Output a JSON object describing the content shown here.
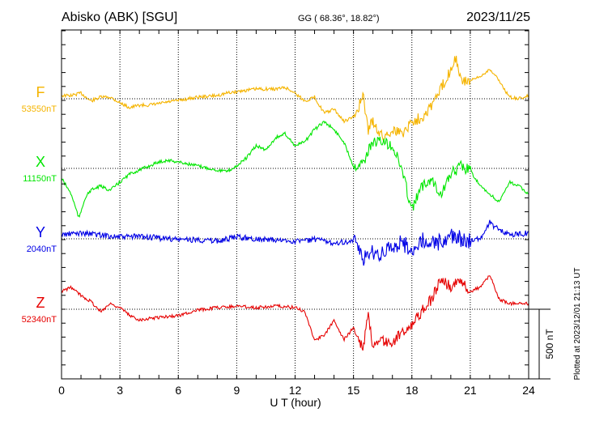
{
  "chart_data": {
    "type": "line",
    "title": "Abisko (ABK)  [SGU]",
    "coords": "GG ( 68.36°,  18.82°)",
    "date": "2023/11/25",
    "xlabel": "U T (hour)",
    "xlim": [
      0,
      24
    ],
    "x_ticks": [
      "0",
      "3",
      "6",
      "9",
      "12",
      "15",
      "18",
      "21",
      "24"
    ],
    "scale_label": "500 nT",
    "scale_nT": 500,
    "footer": "Plotted at 2023/12/01 21:13 UT",
    "grid": "dotted, every 3 hours; baseline per series",
    "series": [
      {
        "name": "F",
        "baseline_label": "53550nT",
        "color": "#f5b400",
        "t": [
          0,
          0.5,
          1,
          1.5,
          2,
          2.5,
          3,
          3.5,
          4,
          4.5,
          5,
          5.5,
          6,
          7,
          8,
          8.5,
          9,
          10,
          11,
          11.5,
          12,
          12.5,
          13,
          13.5,
          14,
          14.5,
          15,
          15.5,
          15.75,
          16,
          16.5,
          17,
          17.5,
          18,
          18.5,
          19,
          19.5,
          20,
          20.25,
          20.5,
          21,
          21.5,
          22,
          22.5,
          23,
          23.5,
          24
        ],
        "nT": [
          23,
          23,
          41,
          -17,
          12,
          12,
          -29,
          -64,
          -46,
          -46,
          -35,
          -23,
          -12,
          12,
          23,
          41,
          52,
          70,
          70,
          81,
          41,
          -17,
          12,
          -104,
          -75,
          -162,
          -133,
          12,
          -220,
          -162,
          -279,
          -220,
          -249,
          -162,
          -133,
          -46,
          70,
          215,
          302,
          128,
          128,
          157,
          215,
          128,
          12,
          0,
          23
        ]
      },
      {
        "name": "X",
        "baseline_label": "11150nT",
        "color": "#00e600",
        "t": [
          0,
          0.5,
          0.9,
          1.2,
          1.5,
          2,
          2.5,
          3,
          3.5,
          4,
          4.5,
          5,
          5.5,
          6,
          7,
          8,
          8.5,
          9,
          9.5,
          10,
          10.5,
          11,
          11.5,
          12,
          12.5,
          13,
          13.5,
          14,
          14.5,
          15,
          15.5,
          16,
          16.5,
          17,
          17.5,
          18,
          18.5,
          19,
          19.5,
          20,
          20.5,
          21,
          21.5,
          22,
          22.5,
          23,
          23.5,
          24
        ],
        "nT": [
          -70,
          -186,
          -360,
          -215,
          -157,
          -128,
          -157,
          -99,
          -41,
          -12,
          17,
          46,
          58,
          46,
          17,
          -12,
          -23,
          17,
          75,
          162,
          133,
          220,
          249,
          162,
          191,
          279,
          336,
          279,
          191,
          17,
          46,
          191,
          191,
          162,
          -12,
          -302,
          -128,
          -70,
          -186,
          -41,
          17,
          -12,
          -128,
          -186,
          -244,
          -99,
          -128,
          -186
        ]
      },
      {
        "name": "Y",
        "baseline_label": "2040nT",
        "color": "#0000e6",
        "t": [
          0,
          1,
          2,
          3,
          4,
          5,
          6,
          7,
          8,
          9,
          10,
          11,
          12,
          13,
          14,
          15,
          15.5,
          16,
          16.5,
          17,
          17.5,
          18,
          18.5,
          19,
          19.5,
          20,
          20.5,
          21,
          21.5,
          22,
          22.5,
          23,
          24
        ],
        "nT": [
          29,
          41,
          29,
          12,
          17,
          6,
          -6,
          -6,
          -17,
          12,
          0,
          -12,
          -17,
          -6,
          -29,
          -17,
          -145,
          -87,
          -116,
          -58,
          -29,
          -87,
          -17,
          -29,
          -29,
          29,
          0,
          -17,
          0,
          116,
          58,
          29,
          41
        ]
      },
      {
        "name": "Z",
        "baseline_label": "52340nT",
        "color": "#e60000",
        "t": [
          0,
          0.5,
          1,
          1.5,
          2,
          2.5,
          3,
          3.5,
          4,
          5,
          6,
          7,
          8,
          9,
          10,
          11,
          12,
          12.5,
          13,
          13.5,
          14,
          14.5,
          15,
          15.5,
          15.75,
          16,
          16.5,
          17,
          17.5,
          18,
          18.5,
          19,
          19.5,
          20,
          20.5,
          21,
          21.5,
          22,
          22.5,
          23,
          24
        ],
        "nT": [
          128,
          157,
          99,
          58,
          -17,
          41,
          12,
          -46,
          -75,
          -58,
          -46,
          -6,
          12,
          23,
          12,
          23,
          12,
          -17,
          -220,
          -191,
          -75,
          -220,
          -133,
          -279,
          -17,
          -279,
          -220,
          -249,
          -162,
          -104,
          -17,
          70,
          215,
          157,
          215,
          128,
          157,
          244,
          70,
          41,
          41
        ]
      }
    ]
  }
}
